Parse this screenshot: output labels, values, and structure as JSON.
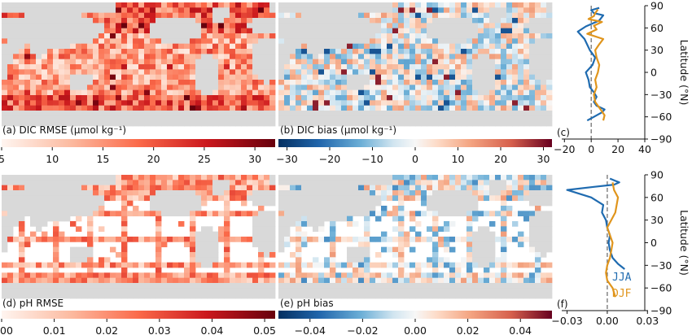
{
  "colors": {
    "land": "#d9d9d9",
    "jja": "#1f6bb0",
    "djf": "#e0951c",
    "zero_line": "#666666"
  },
  "chart_data": [
    {
      "panel": "a",
      "type": "heatmap",
      "map": "world",
      "label": "(a) DIC RMSE (μmol kg⁻¹)",
      "colormap": "Reds",
      "range": [
        5,
        32
      ],
      "colorbar_ticks": [
        "5",
        "10",
        "15",
        "20",
        "25",
        "30"
      ],
      "colorbar_values": [
        5,
        10,
        15,
        20,
        25,
        30
      ]
    },
    {
      "panel": "b",
      "type": "heatmap",
      "map": "world",
      "label": "(b) DIC bias (μmol kg⁻¹)",
      "colormap": "RdBu_r",
      "range": [
        -32,
        32
      ],
      "colorbar_ticks": [
        "−30",
        "−20",
        "−10",
        "0",
        "10",
        "20",
        "30"
      ],
      "colorbar_values": [
        -30,
        -20,
        -10,
        0,
        10,
        20,
        30
      ]
    },
    {
      "panel": "c",
      "type": "line",
      "label": "(c)",
      "xlim": [
        -22,
        40
      ],
      "ylim": [
        -90,
        90
      ],
      "xticks": [
        "−20",
        "0",
        "20",
        "40"
      ],
      "xtick_values": [
        -20,
        0,
        20,
        40
      ],
      "yticks": [
        "90",
        "60",
        "30",
        "0",
        "−30",
        "−60",
        "−90"
      ],
      "ytick_values": [
        90,
        60,
        30,
        0,
        -30,
        -60,
        -90
      ],
      "ylabel": "Latitude (°N)",
      "series": [
        {
          "key": "jja",
          "x": [
            -3,
            2,
            8,
            10,
            4,
            2,
            4,
            2,
            -1,
            -2,
            -4,
            1,
            3,
            -1,
            -5,
            -10,
            -4,
            6,
            9,
            2,
            0,
            6
          ],
          "y": [
            -65,
            -60,
            -54,
            -50,
            -45,
            -40,
            -33,
            -27,
            -20,
            -10,
            0,
            10,
            20,
            30,
            45,
            55,
            62,
            70,
            77,
            80,
            84,
            87
          ]
        },
        {
          "key": "djf",
          "x": [
            9,
            10,
            7,
            3,
            2,
            4,
            3,
            5,
            6,
            4,
            3,
            6,
            9,
            -3,
            4,
            2,
            8,
            -2,
            2,
            3,
            5
          ],
          "y": [
            -65,
            -58,
            -50,
            -40,
            -30,
            -20,
            -10,
            0,
            10,
            20,
            30,
            38,
            45,
            52,
            58,
            63,
            68,
            72,
            76,
            80,
            85
          ]
        }
      ]
    },
    {
      "panel": "d",
      "type": "heatmap",
      "map": "world",
      "label": "(d) pH RMSE",
      "colormap": "Reds",
      "range": [
        0.0,
        0.052
      ],
      "colorbar_ticks": [
        "0.00",
        "0.01",
        "0.02",
        "0.03",
        "0.04",
        "0.05"
      ],
      "colorbar_values": [
        0,
        0.01,
        0.02,
        0.03,
        0.04,
        0.05
      ]
    },
    {
      "panel": "e",
      "type": "heatmap",
      "map": "world",
      "label": "(e) pH bias",
      "colormap": "RdBu_r",
      "range": [
        -0.052,
        0.052
      ],
      "colorbar_ticks": [
        "−0.04",
        "−0.02",
        "0.00",
        "0.02",
        "0.04"
      ],
      "colorbar_values": [
        -0.04,
        -0.02,
        0,
        0.02,
        0.04
      ]
    },
    {
      "panel": "f",
      "type": "line",
      "label": "(f)",
      "xlim": [
        -0.034,
        0.028
      ],
      "ylim": [
        -90,
        90
      ],
      "xticks": [
        "−0.03",
        "0.00",
        "0.03"
      ],
      "xtick_values": [
        -0.03,
        0,
        0.03
      ],
      "yticks": [
        "90",
        "60",
        "30",
        "0",
        "−30",
        "−60",
        "−90"
      ],
      "ytick_values": [
        90,
        60,
        30,
        0,
        -30,
        -60,
        -90
      ],
      "ylabel": "Latitude (°N)",
      "legend": [
        {
          "key": "jja",
          "label": "JJA"
        },
        {
          "key": "djf",
          "label": "DJF"
        }
      ],
      "series": [
        {
          "key": "jja",
          "x": [
            0.013,
            0.008,
            0.004,
            0.002,
            0.001,
            0.002,
            0.0,
            -0.001,
            -0.004,
            -0.003,
            -0.012,
            -0.03,
            -0.01,
            0.005,
            0.009,
            0.006,
            0.002
          ],
          "y": [
            -35,
            -28,
            -20,
            -10,
            0,
            10,
            20,
            30,
            40,
            50,
            60,
            70,
            74,
            77,
            80,
            82,
            85
          ]
        },
        {
          "key": "djf",
          "x": [
            0.006,
            0.004,
            0.0,
            -0.001,
            0.0,
            0.002,
            0.003,
            0.004,
            0.0,
            0.006,
            0.008,
            0.005,
            0.004
          ],
          "y": [
            -72,
            -60,
            -50,
            -40,
            -30,
            -20,
            -10,
            0,
            20,
            40,
            60,
            70,
            80
          ]
        }
      ]
    }
  ]
}
